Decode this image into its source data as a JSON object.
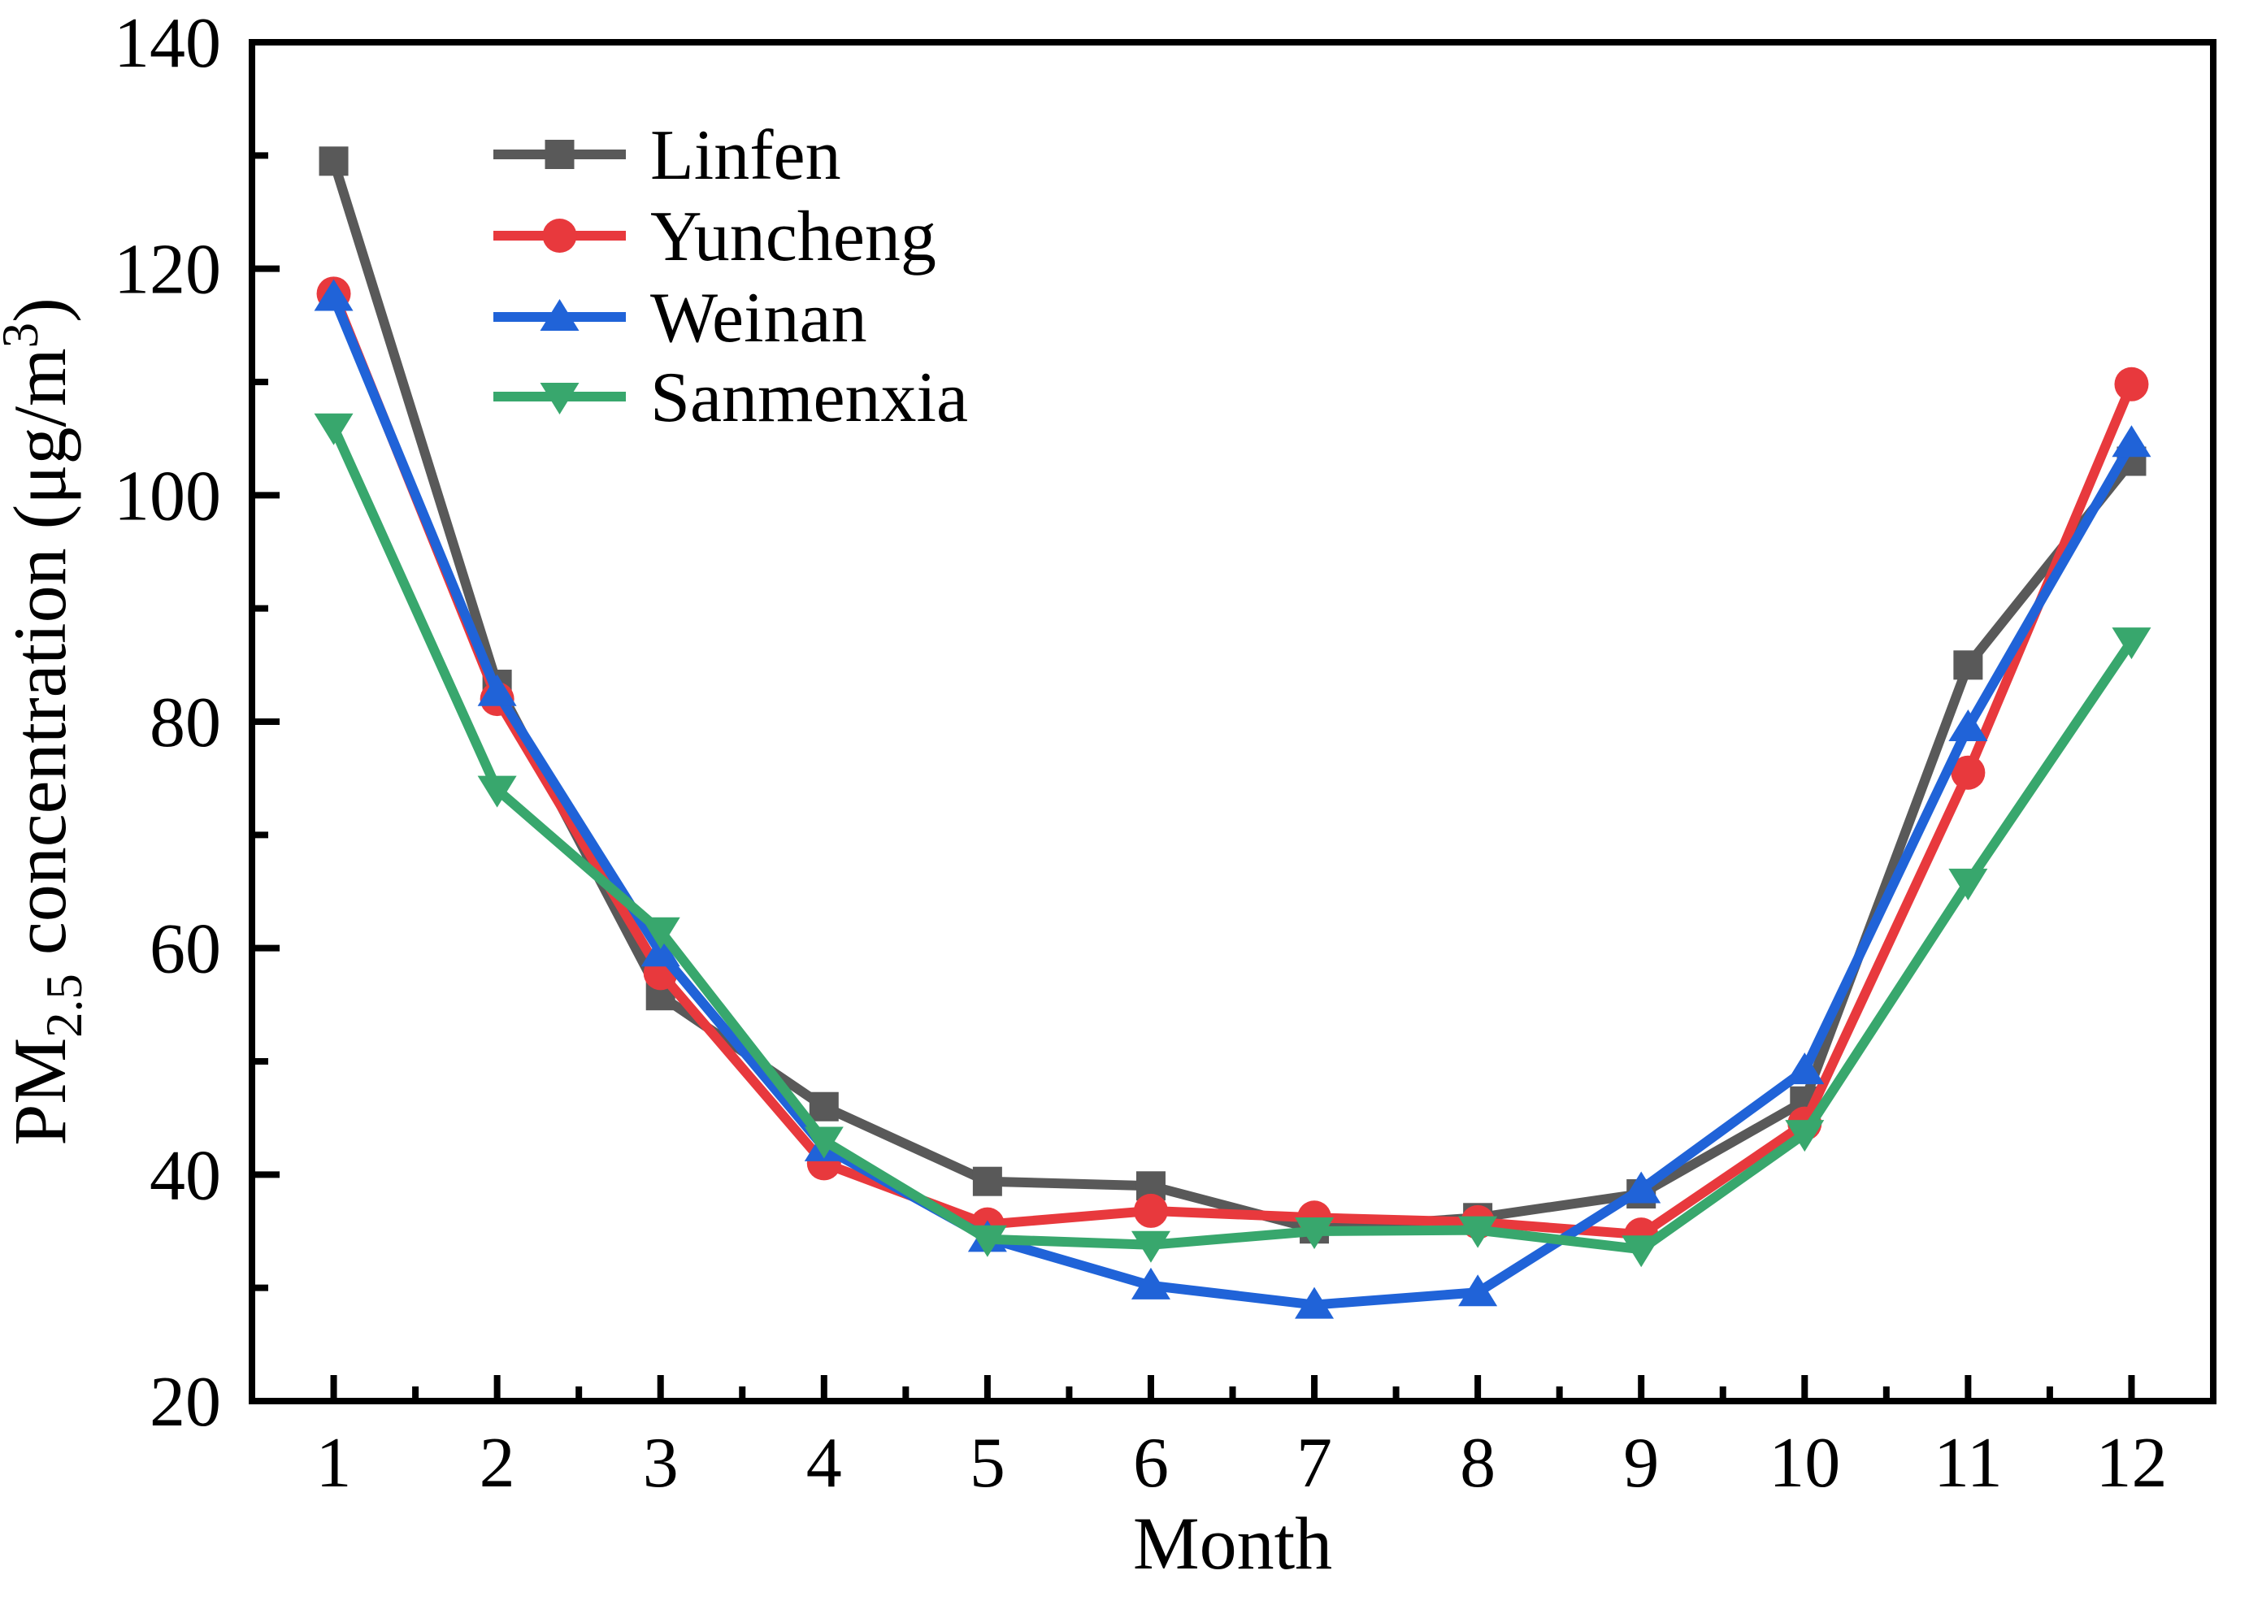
{
  "chart_data": {
    "type": "line",
    "title": "",
    "xlabel": "Month",
    "ylabel_text": "PM2.5 concentration (μg/m3)",
    "ylabel_parts": [
      {
        "text": "PM",
        "style": "normal"
      },
      {
        "text": "2.5",
        "style": "sub"
      },
      {
        "text": " concentration (μg/m",
        "style": "normal"
      },
      {
        "text": "3",
        "style": "sup"
      },
      {
        "text": ")",
        "style": "normal"
      }
    ],
    "x": [
      1,
      2,
      3,
      4,
      5,
      6,
      7,
      8,
      9,
      10,
      11,
      12
    ],
    "x_tick_labels": [
      "1",
      "2",
      "3",
      "4",
      "5",
      "6",
      "7",
      "8",
      "9",
      "10",
      "11",
      "12"
    ],
    "xlim": [
      0.5,
      12.5
    ],
    "ylim": [
      20,
      140
    ],
    "y_major_ticks": [
      20,
      40,
      60,
      80,
      100,
      120,
      140
    ],
    "y_minor_ticks": [
      30,
      50,
      70,
      90,
      110,
      130
    ],
    "x_minor_ticks": [
      1.5,
      2.5,
      3.5,
      4.5,
      5.5,
      6.5,
      7.5,
      8.5,
      9.5,
      10.5,
      11.5
    ],
    "grid": false,
    "legend_position": "upper-left-inside",
    "axis_color": "#000000",
    "background_color": "#ffffff",
    "series": [
      {
        "name": "Linfen",
        "color": "#595959",
        "marker": "square",
        "values": [
          129.5,
          83.3,
          55.8,
          46.0,
          39.4,
          39.0,
          35.2,
          36.2,
          38.3,
          46.5,
          85.0,
          103.0
        ]
      },
      {
        "name": "Yuncheng",
        "color": "#e8393d",
        "marker": "circle",
        "values": [
          117.8,
          82.0,
          57.8,
          41.0,
          35.6,
          36.8,
          36.2,
          35.8,
          34.7,
          44.5,
          75.5,
          109.8
        ]
      },
      {
        "name": "Weinan",
        "color": "#2063d8",
        "marker": "triangle-up",
        "values": [
          117.5,
          82.6,
          59.6,
          42.4,
          34.4,
          30.2,
          28.5,
          29.6,
          38.7,
          49.2,
          79.5,
          104.6
        ]
      },
      {
        "name": "Sanmenxia",
        "color": "#38a76d",
        "marker": "triangle-down",
        "values": [
          106.0,
          74.0,
          61.5,
          43.0,
          34.3,
          33.8,
          35.0,
          35.1,
          33.4,
          43.6,
          65.8,
          87.1
        ]
      }
    ]
  }
}
